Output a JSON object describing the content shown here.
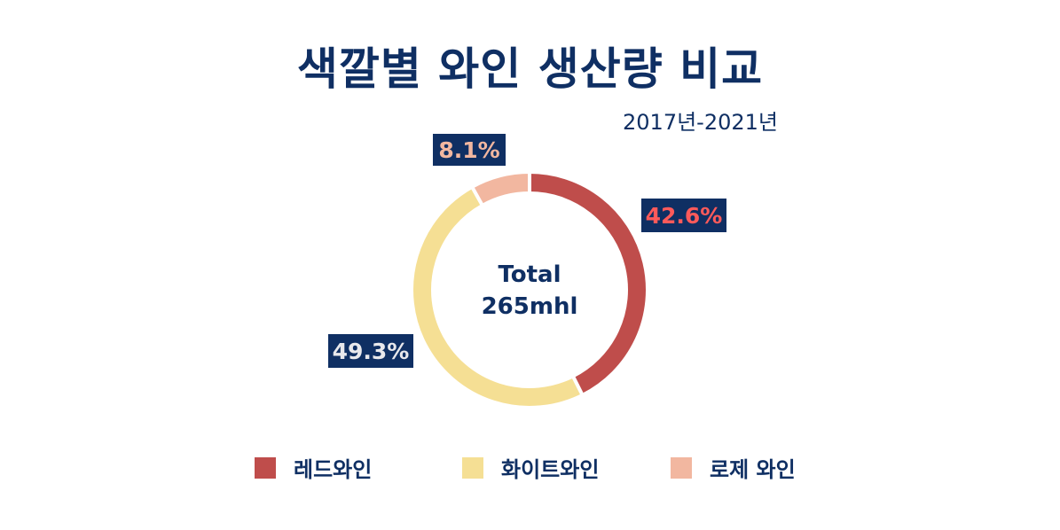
{
  "title": "색깔별 와인 생산량 비교",
  "subtitle": "2017년-2021년",
  "center_label": {
    "line1": "Total",
    "line2": "265mhl"
  },
  "colors": {
    "red_wine": "#bf4d4b",
    "white_wine": "#f5df94",
    "rose_wine": "#f2b7a0",
    "label_bg": "#0f2f63",
    "title": "#0f2f63"
  },
  "chart_data": {
    "type": "pie",
    "variant": "donut",
    "title": "색깔별 와인 생산량 비교",
    "subtitle": "2017년-2021년",
    "total_label": "Total 265mhl",
    "categories": [
      "레드와인",
      "화이트와인",
      "로제 와인"
    ],
    "values": [
      42.6,
      49.3,
      8.1
    ],
    "value_labels": [
      "42.6%",
      "49.3%",
      "8.1%"
    ],
    "label_colors": [
      "#ff5a5a",
      "#e8e8ec",
      "#f2b7a0"
    ],
    "legend_position": "bottom"
  }
}
